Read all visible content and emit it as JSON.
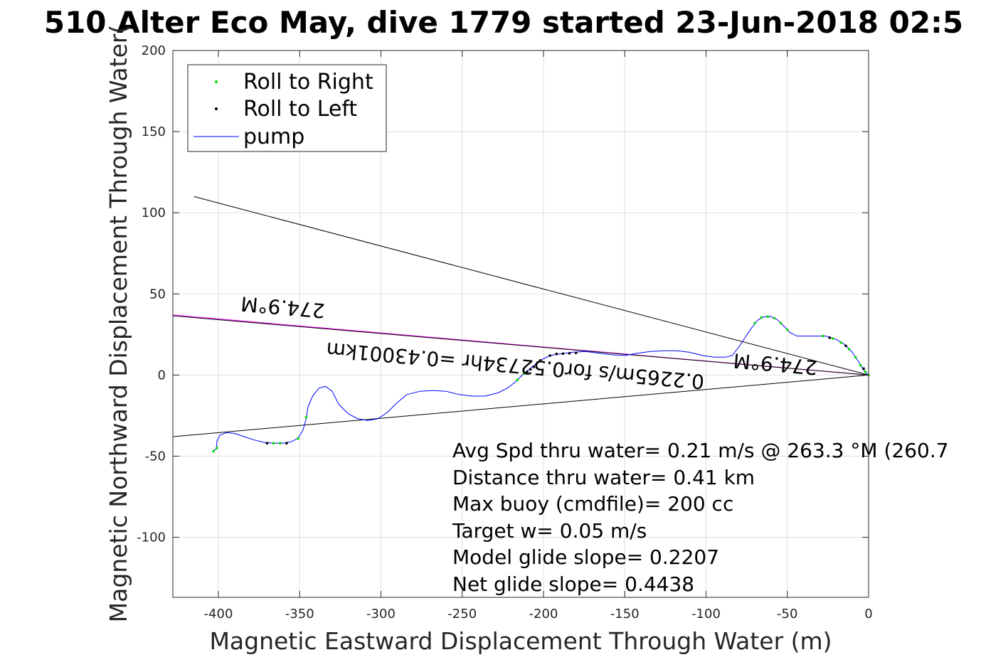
{
  "chart_data": {
    "type": "line",
    "title": "510 Alter Eco May, dive 1779 started 23-Jun-2018 02:5",
    "xlabel": "Magnetic Eastward Displacement Through Water (m)",
    "ylabel": "Magnetic Northward Displacement Through Water(",
    "xlim": [
      -428,
      0
    ],
    "ylim": [
      -137,
      200
    ],
    "grid": true,
    "legend_position": "top-left",
    "x_ticks": [
      -400,
      -350,
      -300,
      -250,
      -200,
      -150,
      -100,
      -50,
      0
    ],
    "y_ticks": [
      -100,
      -50,
      0,
      50,
      100,
      150,
      200
    ],
    "x_tick_labels": [
      "-400",
      "-350",
      "-300",
      "-250",
      "-200",
      "-150",
      "-100",
      "-50",
      "0"
    ],
    "y_tick_labels": [
      "-100",
      "-50",
      "0",
      "50",
      "100",
      "150",
      "200"
    ],
    "legend": [
      {
        "label": "Roll to Right",
        "color": "#00e000",
        "marker": "point"
      },
      {
        "label": "Roll to Left",
        "color": "#000000",
        "marker": "point"
      },
      {
        "label": "pump",
        "color": "#0000ff",
        "marker": "line"
      }
    ],
    "series": [
      {
        "name": "pump",
        "color": "#0000ff",
        "points": [
          [
            0,
            0
          ],
          [
            -3,
            3
          ],
          [
            -6,
            8
          ],
          [
            -10,
            14
          ],
          [
            -15,
            19
          ],
          [
            -20,
            22
          ],
          [
            -26,
            24
          ],
          [
            -32,
            24
          ],
          [
            -38,
            24
          ],
          [
            -44,
            24
          ],
          [
            -48,
            26
          ],
          [
            -52,
            30
          ],
          [
            -56,
            34
          ],
          [
            -60,
            36
          ],
          [
            -64,
            36
          ],
          [
            -68,
            34
          ],
          [
            -72,
            29
          ],
          [
            -76,
            23
          ],
          [
            -80,
            17
          ],
          [
            -84,
            12
          ],
          [
            -88,
            11
          ],
          [
            -95,
            11
          ],
          [
            -102,
            12
          ],
          [
            -110,
            14
          ],
          [
            -118,
            15
          ],
          [
            -126,
            15
          ],
          [
            -134,
            14.5
          ],
          [
            -142,
            13.5
          ],
          [
            -150,
            12
          ],
          [
            -158,
            12.5
          ],
          [
            -166,
            13.5
          ],
          [
            -174,
            14.5
          ],
          [
            -182,
            14
          ],
          [
            -190,
            13
          ],
          [
            -196,
            12
          ],
          [
            -202,
            9
          ],
          [
            -207,
            5
          ],
          [
            -212,
            1
          ],
          [
            -217,
            -4
          ],
          [
            -222,
            -8
          ],
          [
            -228,
            -11
          ],
          [
            -236,
            -13
          ],
          [
            -244,
            -13
          ],
          [
            -252,
            -12
          ],
          [
            -260,
            -10
          ],
          [
            -268,
            -9.5
          ],
          [
            -276,
            -10
          ],
          [
            -284,
            -12
          ],
          [
            -290,
            -17
          ],
          [
            -296,
            -23
          ],
          [
            -302,
            -27
          ],
          [
            -308,
            -28
          ],
          [
            -314,
            -27
          ],
          [
            -320,
            -24
          ],
          [
            -326,
            -18
          ],
          [
            -330,
            -10
          ],
          [
            -334,
            -7
          ],
          [
            -338,
            -8
          ],
          [
            -342,
            -13
          ],
          [
            -345,
            -20
          ],
          [
            -346,
            -27
          ],
          [
            -348,
            -34
          ],
          [
            -351,
            -39
          ],
          [
            -355,
            -41
          ],
          [
            -360,
            -42
          ],
          [
            -366,
            -42
          ],
          [
            -372,
            -41.5
          ],
          [
            -378,
            -40
          ],
          [
            -384,
            -38
          ],
          [
            -390,
            -36
          ],
          [
            -395,
            -35.5
          ],
          [
            -399,
            -37
          ],
          [
            -401,
            -41
          ],
          [
            -401,
            -45
          ],
          [
            -403,
            -47
          ]
        ]
      },
      {
        "name": "Roll to Right",
        "color": "#00e000",
        "points": [
          [
            0,
            0
          ],
          [
            -2,
            2
          ],
          [
            -5,
            6
          ],
          [
            -8,
            11
          ],
          [
            -12,
            16
          ],
          [
            -17,
            20
          ],
          [
            -22,
            22.5
          ],
          [
            -28,
            24
          ],
          [
            -50,
            28
          ],
          [
            -54,
            32
          ],
          [
            -58,
            35
          ],
          [
            -62,
            36
          ],
          [
            -66,
            35.5
          ],
          [
            -70,
            32
          ],
          [
            -212,
            1
          ],
          [
            -216,
            -3
          ],
          [
            -346,
            -26
          ],
          [
            -351,
            -39
          ],
          [
            -362,
            -42
          ],
          [
            -366,
            -42
          ],
          [
            -403,
            -47
          ],
          [
            -401,
            -45
          ]
        ]
      },
      {
        "name": "Roll to Left",
        "color": "#000000",
        "points": [
          [
            -3,
            4
          ],
          [
            -14,
            18
          ],
          [
            -24,
            23
          ],
          [
            -202,
            9
          ],
          [
            -206,
            5
          ],
          [
            -208,
            3.5
          ],
          [
            -196,
            12
          ],
          [
            -192,
            13
          ],
          [
            -188,
            13.2
          ],
          [
            -184,
            13.4
          ],
          [
            -180,
            13.6
          ],
          [
            -210,
            2
          ],
          [
            -358,
            -42
          ],
          [
            -370,
            -42
          ]
        ]
      }
    ],
    "reference_lines": [
      {
        "color": "#000000",
        "points": [
          [
            0,
            0
          ],
          [
            -415,
            110
          ]
        ]
      },
      {
        "color": "#000000",
        "points": [
          [
            0,
            0
          ],
          [
            -428,
            -38
          ]
        ]
      },
      {
        "color": "#ff00ff",
        "points": [
          [
            0,
            0
          ],
          [
            -428,
            37
          ]
        ]
      },
      {
        "color": "#000000",
        "points": [
          [
            0,
            0
          ],
          [
            -428,
            36.5
          ]
        ]
      }
    ],
    "annotations": [
      {
        "text": "274.9°M",
        "x": -360,
        "y": 46,
        "rotation": 184.9
      },
      {
        "text": "274.9°M",
        "x": -57,
        "y": 11,
        "rotation": 184.9
      },
      {
        "text": "0.2265m/s for0.52734hr =0.43001km",
        "x": -217,
        "y": 10,
        "rotation": 184.9
      }
    ],
    "stats": [
      "Avg Spd thru water=  0.21 m/s @ 263.3 °M (260.7",
      "Distance thru water=  0.41 km",
      "Max buoy (cmdfile)= 200 cc",
      "Target w= 0.05 m/s",
      "Model glide slope= 0.2207",
      "Net glide slope= 0.4438"
    ]
  }
}
